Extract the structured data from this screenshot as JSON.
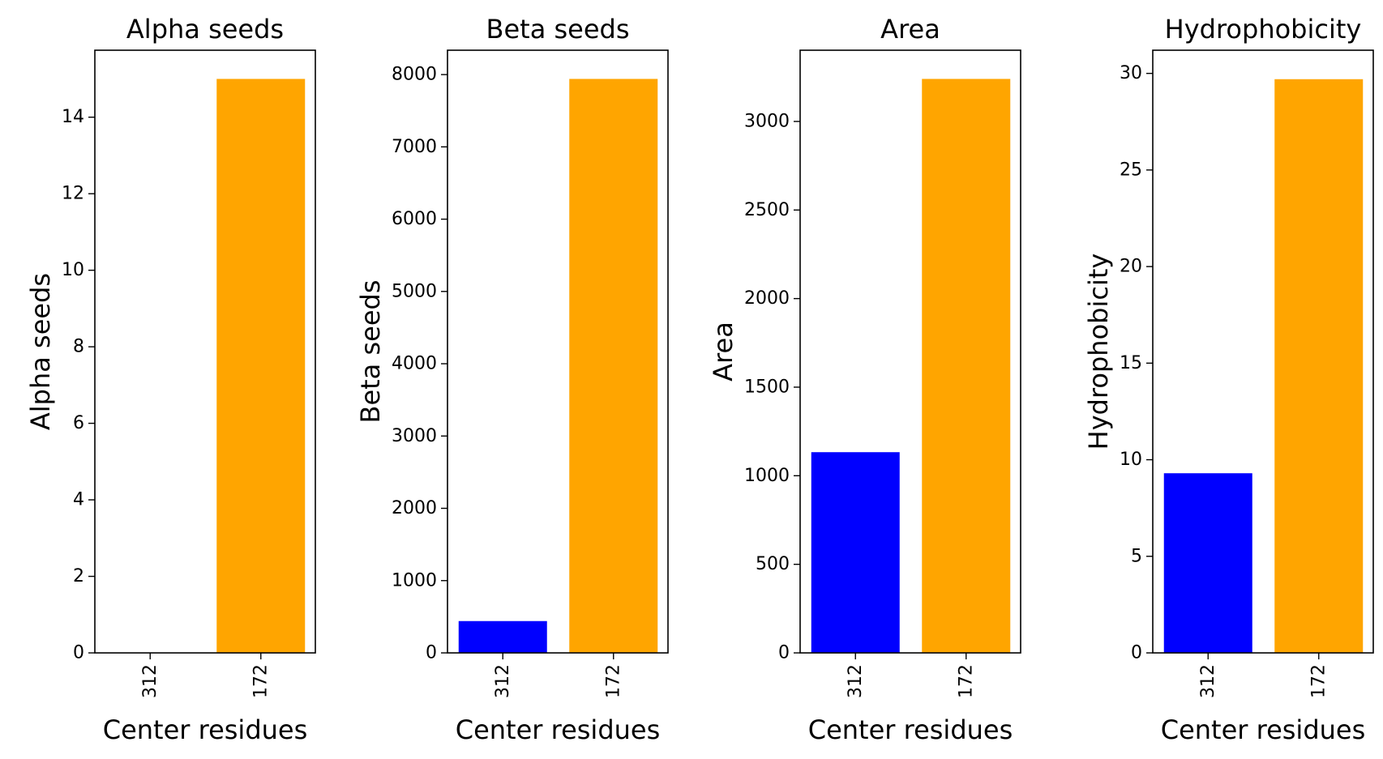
{
  "chart_data": [
    {
      "type": "bar",
      "title": "Alpha seeds",
      "xlabel": "Center residues",
      "ylabel": "Alpha seeds",
      "categories": [
        "312",
        "172"
      ],
      "values": [
        0,
        15
      ],
      "colors": [
        "#0000ff",
        "#ffa500"
      ],
      "yticks": [
        0,
        2,
        4,
        6,
        8,
        10,
        12,
        14
      ],
      "ylim": [
        0,
        15.75
      ],
      "grid": false
    },
    {
      "type": "bar",
      "title": "Beta seeds",
      "xlabel": "Center residues",
      "ylabel": "Beta seeds",
      "categories": [
        "312",
        "172"
      ],
      "values": [
        440,
        7940
      ],
      "colors": [
        "#0000ff",
        "#ffa500"
      ],
      "yticks": [
        0,
        1000,
        2000,
        3000,
        4000,
        5000,
        6000,
        7000,
        8000
      ],
      "ylim": [
        0,
        8337
      ],
      "grid": false
    },
    {
      "type": "bar",
      "title": "Area",
      "xlabel": "Center residues",
      "ylabel": "Area",
      "categories": [
        "312",
        "172"
      ],
      "values": [
        1133,
        3240
      ],
      "colors": [
        "#0000ff",
        "#ffa500"
      ],
      "yticks": [
        0,
        500,
        1000,
        1500,
        2000,
        2500,
        3000
      ],
      "ylim": [
        0,
        3402
      ],
      "grid": false
    },
    {
      "type": "bar",
      "title": "Hydrophobicity",
      "xlabel": "Center residues",
      "ylabel": "Hydrophobicity",
      "categories": [
        "312",
        "172"
      ],
      "values": [
        9.3,
        29.7
      ],
      "colors": [
        "#0000ff",
        "#ffa500"
      ],
      "yticks": [
        0,
        5,
        10,
        15,
        20,
        25,
        30
      ],
      "ylim": [
        0,
        31.2
      ],
      "grid": false
    }
  ]
}
